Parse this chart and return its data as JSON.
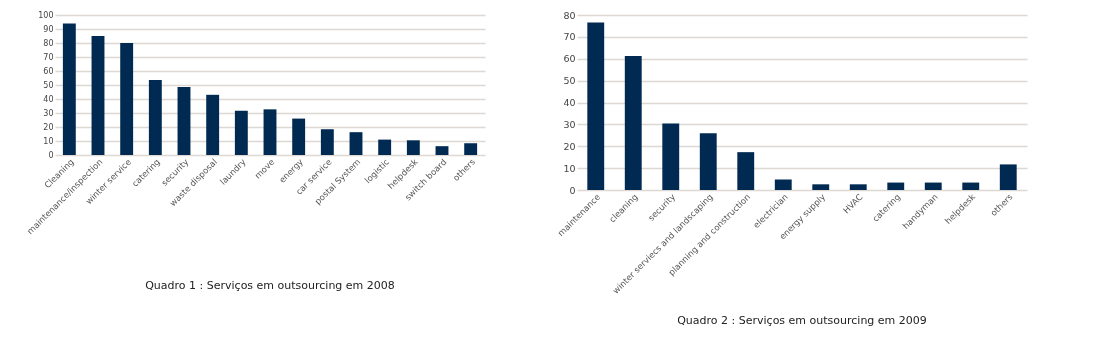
{
  "chart_data": [
    {
      "type": "bar",
      "title": "Quadro 1 : Serviços em outsourcing em 2008",
      "categories": [
        "Cleaning",
        "maintenance/inspection",
        "winter service",
        "catering",
        "security",
        "waste disposal",
        "laundry",
        "move",
        "energy",
        "car service",
        "postal System",
        "logistic",
        "helpdesk",
        "switch board",
        "others"
      ],
      "values": [
        94,
        85,
        80,
        53.5,
        48.6,
        43,
        31.6,
        32.6,
        26,
        18.4,
        16.3,
        11,
        10.5,
        6.3,
        8.4
      ],
      "color": "#012a52",
      "ylim": [
        0,
        100
      ],
      "yticks": [
        0,
        10,
        20,
        30,
        40,
        50,
        60,
        70,
        80,
        90,
        100
      ],
      "grid": "y"
    },
    {
      "type": "bar",
      "title": "Quadro 2 : Serviços em outsourcing em 2009",
      "categories": [
        "maintenance",
        "cleaning",
        "security",
        "winter serviecs and landscaping",
        "planning and construction",
        "electrician",
        "energy supply",
        "HVAC",
        "catering",
        "handyman",
        "helpdesk",
        "others"
      ],
      "values": [
        76.6,
        61.3,
        30.4,
        25.9,
        17.3,
        4.8,
        2.6,
        2.6,
        3.4,
        3.4,
        3.4,
        11.7
      ],
      "color": "#012a52",
      "ylim": [
        0,
        80
      ],
      "yticks": [
        0,
        10,
        20,
        30,
        40,
        50,
        60,
        70,
        80
      ],
      "grid": "y"
    }
  ]
}
